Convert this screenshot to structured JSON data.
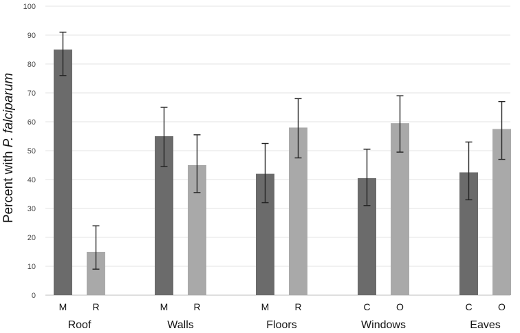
{
  "chart_data": {
    "type": "bar",
    "ylabel_prefix": "Percent with ",
    "ylabel_italic": "P. falciparum",
    "xlabel": "",
    "ylim": [
      0,
      100
    ],
    "yticks": [
      "0",
      "10",
      "20",
      "30",
      "40",
      "50",
      "60",
      "70",
      "80",
      "90",
      "100"
    ],
    "grid": true,
    "groups": [
      {
        "name": "Roof",
        "bars": [
          {
            "label": "M",
            "value": 85,
            "err_low": 76,
            "err_high": 91,
            "shade": "dark"
          },
          {
            "label": "R",
            "value": 15,
            "err_low": 9,
            "err_high": 24,
            "shade": "light"
          }
        ]
      },
      {
        "name": "Walls",
        "bars": [
          {
            "label": "M",
            "value": 55,
            "err_low": 44.5,
            "err_high": 65,
            "shade": "dark"
          },
          {
            "label": "R",
            "value": 45,
            "err_low": 35.5,
            "err_high": 55.5,
            "shade": "light"
          }
        ]
      },
      {
        "name": "Floors",
        "bars": [
          {
            "label": "M",
            "value": 42,
            "err_low": 32,
            "err_high": 52.5,
            "shade": "dark"
          },
          {
            "label": "R",
            "value": 58,
            "err_low": 47.5,
            "err_high": 68,
            "shade": "light"
          }
        ]
      },
      {
        "name": "Windows",
        "bars": [
          {
            "label": "C",
            "value": 40.5,
            "err_low": 31,
            "err_high": 50.5,
            "shade": "dark"
          },
          {
            "label": "O",
            "value": 59.5,
            "err_low": 49.5,
            "err_high": 69,
            "shade": "light"
          }
        ]
      },
      {
        "name": "Eaves",
        "bars": [
          {
            "label": "C",
            "value": 42.5,
            "err_low": 33,
            "err_high": 53,
            "shade": "dark"
          },
          {
            "label": "O",
            "value": 57.5,
            "err_low": 47,
            "err_high": 67,
            "shade": "light"
          }
        ]
      }
    ],
    "colors": {
      "dark": "#6b6b6b",
      "light": "#a9a9a9",
      "grid": "#e3e3e3",
      "error": "#222222"
    }
  }
}
